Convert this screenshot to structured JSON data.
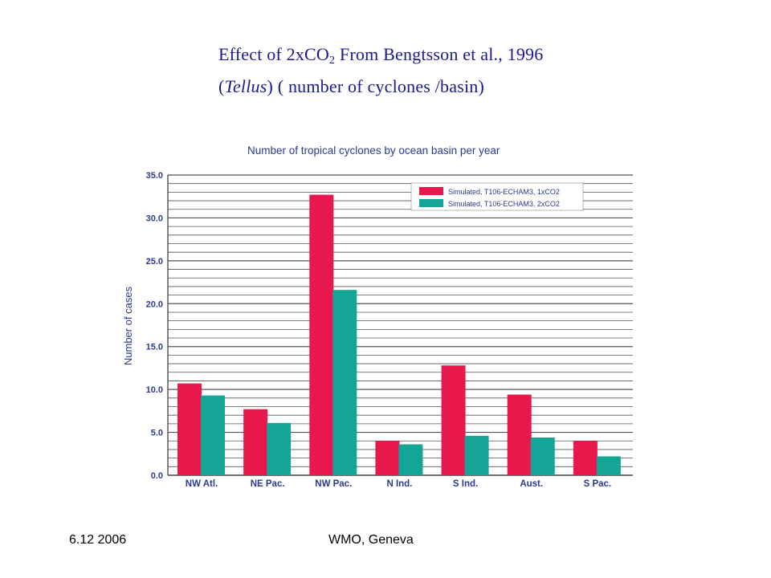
{
  "slide": {
    "title_part1": "Effect of 2xCO",
    "title_sub": "2",
    "title_part2": " From Bengtsson et al., 1996",
    "title_paren_open": "(",
    "title_italic": "Tellus",
    "title_part3": ") ( number of cyclones /basin)",
    "footer_date": "6.12 2006",
    "footer_center": "WMO, Geneva"
  },
  "colors": {
    "series1": "#e8174c",
    "series2": "#14a597",
    "chart_text": "#2b3a8f",
    "grid": "#555555",
    "title_text": "#1a1a8c"
  },
  "chart_data": {
    "type": "bar",
    "title": "Number of tropical cyclones by ocean basin per year",
    "xlabel": "",
    "ylabel": "Number of cases",
    "ylim": [
      0,
      35
    ],
    "yticks": [
      "0.0",
      "5.0",
      "10.0",
      "15.0",
      "20.0",
      "25.0",
      "30.0",
      "35.0"
    ],
    "grid": true,
    "legend_position": "top-right",
    "categories": [
      "NW Atl.",
      "NE Pac.",
      "NW Pac.",
      "N Ind.",
      "S Ind.",
      "Aust.",
      "S Pac."
    ],
    "series": [
      {
        "name": "Simulated, T106-ECHAM3, 1xCO2",
        "values": [
          10.7,
          7.7,
          32.7,
          4.0,
          12.8,
          9.4,
          4.0
        ]
      },
      {
        "name": "Simulated, T106-ECHAM3, 2xCO2",
        "values": [
          9.3,
          6.1,
          21.6,
          3.6,
          4.6,
          4.4,
          2.2
        ]
      }
    ]
  }
}
